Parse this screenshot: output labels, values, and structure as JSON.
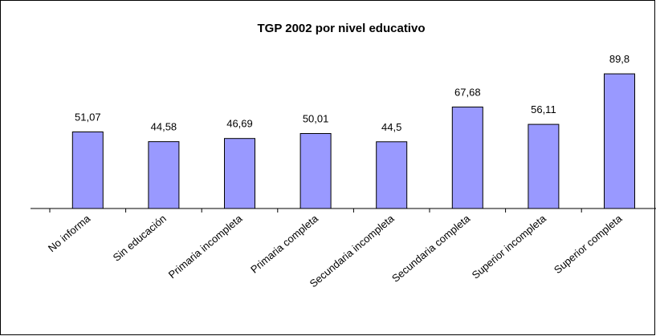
{
  "chart_data": {
    "type": "bar",
    "title": "TGP 2002 por nivel educativo",
    "categories": [
      "No informa",
      "Sin educación",
      "Primaria incompleta",
      "Primaria completa",
      "Secundaria incompleta",
      "Secundaria completa",
      "Superior incompleta",
      "Superior completa"
    ],
    "values": [
      51.07,
      44.58,
      46.69,
      50.01,
      44.5,
      67.68,
      56.11,
      89.8
    ],
    "value_labels": [
      "51,07",
      "44,58",
      "46,69",
      "50,01",
      "44,5",
      "67,68",
      "56,11",
      "89,8"
    ],
    "color": "#9999ff"
  }
}
